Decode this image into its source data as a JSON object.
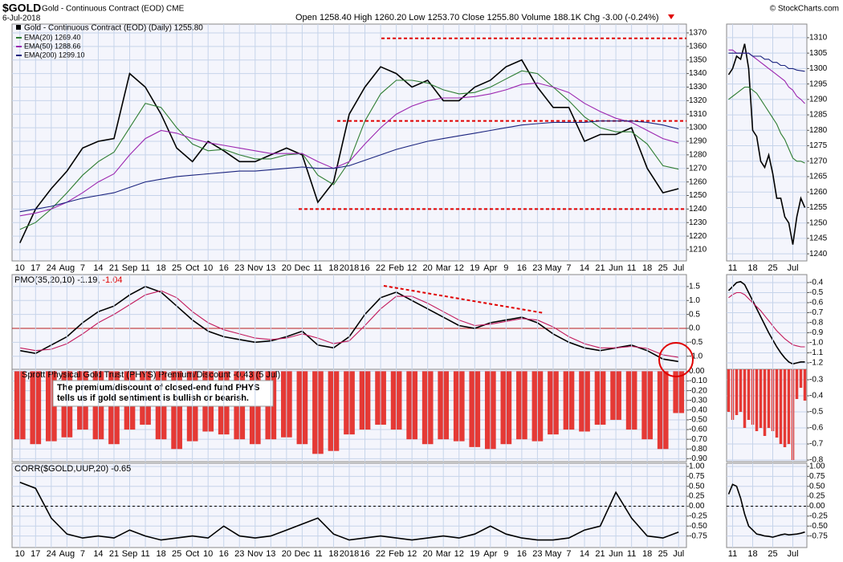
{
  "header": {
    "symbol": "$GOLD",
    "name": "Gold - Continuous Contract (EOD) CME",
    "date": "6-Jul-2018",
    "quote": "Open 1258.40 High 1260.20 Low 1253.70 Close 1255.80 Volume 188.1K Chg -3.00 (-0.24%)",
    "credit": "© StockCharts.com"
  },
  "chart_data": [
    {
      "type": "line",
      "title": "Gold - Continuous Contract (EOD) (Daily) 1255.80",
      "categories": [
        "10",
        "17",
        "24",
        "Aug",
        "7",
        "14",
        "21",
        "Sep",
        "11",
        "18",
        "25",
        "Oct",
        "10",
        "16",
        "23",
        "Nov",
        "13",
        "20",
        "Dec",
        "11",
        "18",
        "2018",
        "16",
        "22",
        "Feb",
        "12",
        "20",
        "Mar",
        "12",
        "19",
        "Apr",
        "9",
        "16",
        "23",
        "May",
        "7",
        "14",
        "21",
        "Jun",
        "11",
        "18",
        "25",
        "Jul"
      ],
      "series": [
        {
          "color": "#000000",
          "values": [
            1215,
            1240,
            1255,
            1268,
            1285,
            1290,
            1292,
            1340,
            1330,
            1310,
            1285,
            1275,
            1290,
            1283,
            1275,
            1275,
            1280,
            1285,
            1280,
            1245,
            1260,
            1310,
            1330,
            1345,
            1340,
            1330,
            1335,
            1320,
            1320,
            1330,
            1335,
            1345,
            1350,
            1330,
            1315,
            1315,
            1290,
            1295,
            1295,
            1300,
            1270,
            1252,
            1255
          ]
        },
        {
          "name": "EMA(20) 1269.40",
          "color": "#2e7d32",
          "values": [
            1225,
            1230,
            1240,
            1252,
            1265,
            1275,
            1282,
            1300,
            1318,
            1315,
            1300,
            1288,
            1283,
            1284,
            1280,
            1277,
            1277,
            1280,
            1281,
            1265,
            1258,
            1275,
            1305,
            1325,
            1335,
            1335,
            1333,
            1328,
            1325,
            1326,
            1330,
            1336,
            1342,
            1340,
            1330,
            1320,
            1308,
            1300,
            1297,
            1297,
            1288,
            1272,
            1269.4
          ]
        },
        {
          "name": "EMA(50) 1288.66",
          "color": "#9c27b0",
          "values": [
            1235,
            1237,
            1240,
            1245,
            1252,
            1260,
            1266,
            1280,
            1292,
            1298,
            1296,
            1292,
            1289,
            1287,
            1285,
            1283,
            1281,
            1281,
            1281,
            1275,
            1270,
            1275,
            1288,
            1300,
            1310,
            1316,
            1320,
            1322,
            1322,
            1323,
            1325,
            1328,
            1332,
            1333,
            1330,
            1326,
            1318,
            1312,
            1307,
            1304,
            1298,
            1292,
            1288.66
          ]
        },
        {
          "name": "EMA(200) 1299.10",
          "color": "#1a237e",
          "values": [
            1238,
            1240,
            1242,
            1245,
            1248,
            1250,
            1252,
            1256,
            1260,
            1262,
            1264,
            1265,
            1266,
            1267,
            1268,
            1268,
            1269,
            1270,
            1271,
            1270,
            1270,
            1272,
            1276,
            1280,
            1284,
            1287,
            1290,
            1292,
            1294,
            1296,
            1298,
            1300,
            1302,
            1303,
            1304,
            1304,
            1304,
            1305,
            1305,
            1305,
            1304,
            1302,
            1299.1
          ]
        }
      ],
      "ylim": [
        1201.7,
        1376.5
      ],
      "yticks": [
        1210,
        1220,
        1230,
        1240,
        1250,
        1260,
        1270,
        1280,
        1290,
        1300,
        1310,
        1320,
        1330,
        1340,
        1350,
        1360,
        1370
      ],
      "hlines": [
        1366,
        1305,
        1240
      ],
      "hline_color": "#e00000",
      "grid": true
    },
    {
      "type": "line",
      "categories": [
        null,
        "11",
        null,
        null,
        null,
        null,
        "18",
        null,
        null,
        null,
        null,
        "25",
        null,
        null,
        null,
        null,
        "Jul",
        null,
        null,
        null
      ],
      "series": [
        {
          "color": "#000000",
          "values": [
            1298,
            1300,
            1304,
            1303,
            1308,
            1300,
            1280,
            1278,
            1270,
            1268,
            1272,
            1266,
            1258,
            1258,
            1252,
            1250,
            1243,
            1252,
            1258,
            1255
          ]
        },
        {
          "color": "#2e7d32",
          "values": [
            1290,
            1291,
            1292,
            1293,
            1294,
            1294,
            1293,
            1292,
            1290,
            1288,
            1286,
            1284,
            1282,
            1279,
            1277,
            1274,
            1271,
            1270,
            1270,
            1269.4
          ]
        },
        {
          "color": "#9c27b0",
          "values": [
            1306,
            1306,
            1305,
            1305,
            1305,
            1305,
            1304,
            1303,
            1302,
            1301,
            1300,
            1299,
            1298,
            1297,
            1296,
            1294,
            1293,
            1291,
            1290,
            1288.66
          ]
        },
        {
          "color": "#1a237e",
          "values": [
            1305,
            1305,
            1305,
            1305,
            1305,
            1305,
            1304,
            1304,
            1304,
            1303,
            1303,
            1302,
            1302,
            1301,
            1301,
            1300,
            1300,
            1299.5,
            1299.3,
            1299.1
          ]
        }
      ],
      "ylim": [
        1237.7,
        1314.4
      ],
      "yticks": [
        1240,
        1245,
        1250,
        1255,
        1260,
        1265,
        1270,
        1275,
        1280,
        1285,
        1290,
        1295,
        1300,
        1305,
        1310
      ],
      "grid": true
    },
    {
      "type": "line",
      "title": "PMO(35,20,10) -1.19,",
      "title_signal": "-1.04",
      "series": [
        {
          "color": "#000000",
          "values": [
            -0.8,
            -0.9,
            -0.6,
            -0.3,
            0.2,
            0.6,
            0.8,
            1.2,
            1.5,
            1.3,
            0.8,
            0.3,
            -0.1,
            -0.3,
            -0.4,
            -0.5,
            -0.45,
            -0.3,
            -0.1,
            -0.6,
            -0.7,
            -0.3,
            0.5,
            1.1,
            1.3,
            1.0,
            0.7,
            0.4,
            0.1,
            0.0,
            0.2,
            0.3,
            0.4,
            0.2,
            -0.2,
            -0.5,
            -0.7,
            -0.8,
            -0.7,
            -0.6,
            -0.8,
            -1.1,
            -1.19
          ]
        },
        {
          "color": "#c2185b",
          "values": [
            -0.7,
            -0.8,
            -0.75,
            -0.55,
            -0.2,
            0.2,
            0.5,
            0.85,
            1.2,
            1.35,
            1.1,
            0.6,
            0.2,
            -0.05,
            -0.2,
            -0.35,
            -0.4,
            -0.35,
            -0.2,
            -0.35,
            -0.55,
            -0.45,
            0.1,
            0.7,
            1.15,
            1.15,
            0.9,
            0.6,
            0.3,
            0.1,
            0.15,
            0.25,
            0.35,
            0.3,
            0.05,
            -0.3,
            -0.55,
            -0.7,
            -0.7,
            -0.65,
            -0.72,
            -0.95,
            -1.04
          ]
        }
      ],
      "ylim": [
        -1.47,
        1.93
      ],
      "yticks": [
        {
          "value": 1.5,
          "label": "1.5"
        },
        {
          "value": 1,
          "label": "1.0"
        },
        {
          "value": 0.5,
          "label": "0.5"
        },
        {
          "value": 0,
          "label": "0.0"
        },
        {
          "value": -0.5,
          "label": "-0.5"
        },
        {
          "value": -1,
          "label": "-1.0"
        }
      ],
      "hlines": [
        0
      ],
      "hline_color": "#b71c1c",
      "grid": true
    },
    {
      "type": "line",
      "series": [
        {
          "color": "#000000",
          "values": [
            -0.48,
            -0.44,
            -0.4,
            -0.39,
            -0.42,
            -0.5,
            -0.58,
            -0.66,
            -0.74,
            -0.82,
            -0.9,
            -0.97,
            -1.04,
            -1.1,
            -1.15,
            -1.19,
            -1.21,
            -1.2,
            -1.19,
            -1.19
          ]
        },
        {
          "color": "#c2185b",
          "values": [
            -0.55,
            -0.52,
            -0.5,
            -0.5,
            -0.52,
            -0.56,
            -0.6,
            -0.64,
            -0.68,
            -0.73,
            -0.78,
            -0.83,
            -0.88,
            -0.92,
            -0.96,
            -0.99,
            -1.02,
            -1.03,
            -1.04,
            -1.04
          ]
        }
      ],
      "ylim": [
        -1.264,
        -0.32
      ],
      "yticks": [
        -0.4,
        -0.5,
        -0.6,
        -0.7,
        -0.8,
        -0.9,
        {
          "value": -1,
          "label": "-1.0"
        },
        -1.1,
        -1.2
      ],
      "grid": true
    },
    {
      "type": "bar",
      "title": "Sprott Physical Gold Trust (PHYS) Premium/Discount -0.43 (5 Jul)",
      "annotation": [
        "The premium/discount of closed-end fund PHYS",
        "tells us if gold sentiment is bullish or bearish."
      ],
      "values": [
        -0.7,
        -0.75,
        -0.72,
        -0.68,
        -0.6,
        -0.7,
        -0.75,
        -0.6,
        -0.55,
        -0.7,
        -0.8,
        -0.72,
        -0.62,
        -0.65,
        -0.7,
        -0.75,
        -0.7,
        -0.68,
        -0.75,
        -0.85,
        -0.82,
        -0.65,
        -0.6,
        -0.55,
        -0.6,
        -0.7,
        -0.75,
        -0.7,
        -0.72,
        -0.78,
        -0.8,
        -0.75,
        -0.7,
        -0.72,
        -0.65,
        -0.6,
        -0.62,
        -0.55,
        -0.5,
        -0.6,
        -0.7,
        -0.8,
        -0.43
      ],
      "color": "#e53935",
      "ylim": [
        -0.93,
        0.02
      ],
      "yticks": [
        {
          "value": 0,
          "label": "0.00"
        },
        {
          "value": -0.1,
          "label": "-0.10"
        },
        {
          "value": -0.2,
          "label": "-0.20"
        },
        {
          "value": -0.3,
          "label": "-0.30"
        },
        {
          "value": -0.4,
          "label": "-0.40"
        },
        {
          "value": -0.5,
          "label": "-0.50"
        },
        {
          "value": -0.6,
          "label": "-0.60"
        },
        {
          "value": -0.7,
          "label": "-0.70"
        },
        {
          "value": -0.8,
          "label": "-0.80"
        },
        {
          "value": -0.9,
          "label": "-0.90"
        }
      ],
      "grid": true
    },
    {
      "type": "bar",
      "values": [
        -0.5,
        -0.55,
        -0.52,
        -0.5,
        -0.6,
        -0.55,
        -0.58,
        -0.62,
        -0.6,
        -0.65,
        -0.6,
        -0.62,
        -0.66,
        -0.7,
        -0.72,
        -0.7,
        -0.8,
        -0.42,
        -0.35,
        -0.43
      ],
      "color": "#e53935",
      "ylim": [
        -0.81,
        -0.235
      ],
      "yticks": [
        -0.3,
        -0.4,
        -0.5,
        -0.6,
        -0.7,
        -0.8
      ],
      "grid": true
    },
    {
      "type": "line",
      "title": "CORR($GOLD,UUP,20) -0.65",
      "categories": [
        "10",
        "17",
        "24",
        "Aug",
        "7",
        "14",
        "21",
        "Sep",
        "11",
        "18",
        "25",
        "Oct",
        "10",
        "16",
        "23",
        "Nov",
        "13",
        "20",
        "Dec",
        "11",
        "18",
        "2018",
        "16",
        "22",
        "Feb",
        "12",
        "20",
        "Mar",
        "12",
        "19",
        "Apr",
        "9",
        "16",
        "23",
        "May",
        "7",
        "14",
        "21",
        "Jun",
        "11",
        "18",
        "25",
        "Jul"
      ],
      "series": [
        {
          "color": "#000000",
          "values": [
            0.6,
            0.45,
            -0.3,
            -0.7,
            -0.8,
            -0.75,
            -0.8,
            -0.6,
            -0.75,
            -0.85,
            -0.8,
            -0.75,
            -0.8,
            -0.5,
            -0.75,
            -0.8,
            -0.75,
            -0.6,
            -0.45,
            -0.3,
            -0.7,
            -0.85,
            -0.8,
            -0.75,
            -0.8,
            -0.85,
            -0.8,
            -0.75,
            -0.8,
            -0.7,
            -0.5,
            -0.7,
            -0.8,
            -0.85,
            -0.85,
            -0.8,
            -0.6,
            -0.5,
            0.35,
            -0.3,
            -0.75,
            -0.8,
            -0.65
          ]
        }
      ],
      "ylim": [
        -1.04,
        1.08
      ],
      "yticks": [
        {
          "value": 1,
          "label": "1.00"
        },
        {
          "value": 0.75,
          "label": "0.75"
        },
        {
          "value": 0.5,
          "label": "0.50"
        },
        {
          "value": 0.25,
          "label": "0.25"
        },
        {
          "value": 0,
          "label": "0.00"
        },
        {
          "value": -0.25,
          "label": "-0.25"
        },
        {
          "value": -0.5,
          "label": "-0.50"
        },
        {
          "value": -0.75,
          "label": "-0.75"
        }
      ],
      "hlines": [
        0
      ],
      "hline_color": "#000000",
      "grid": true
    },
    {
      "type": "line",
      "categories": [
        null,
        "11",
        null,
        null,
        null,
        null,
        "18",
        null,
        null,
        null,
        null,
        "25",
        null,
        null,
        null,
        null,
        "Jul",
        null,
        null,
        null
      ],
      "series": [
        {
          "color": "#000000",
          "values": [
            0.3,
            0.55,
            0.5,
            0.2,
            -0.2,
            -0.5,
            -0.6,
            -0.7,
            -0.72,
            -0.75,
            -0.76,
            -0.78,
            -0.75,
            -0.72,
            -0.7,
            -0.72,
            -0.71,
            -0.7,
            -0.68,
            -0.65
          ]
        }
      ],
      "ylim": [
        -1.04,
        1.08
      ],
      "yticks": [
        {
          "value": 1,
          "label": "1.00"
        },
        {
          "value": 0.75,
          "label": "0.75"
        },
        {
          "value": 0.5,
          "label": "0.50"
        },
        {
          "value": 0.25,
          "label": "0.25"
        },
        {
          "value": 0,
          "label": "0.00"
        },
        {
          "value": -0.25,
          "label": "-0.25"
        },
        {
          "value": -0.5,
          "label": "-0.50"
        },
        {
          "value": -0.75,
          "label": "-0.75"
        }
      ],
      "hlines": [
        0
      ],
      "hline_color": "#000000",
      "grid": true
    }
  ]
}
